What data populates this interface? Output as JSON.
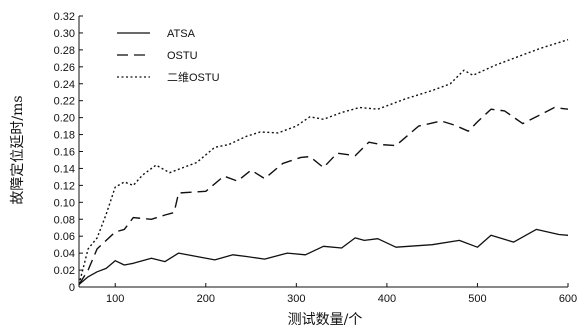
{
  "chart_data": {
    "type": "line",
    "title": "",
    "xlabel": "测试数量/个",
    "ylabel": "故障定位延时/ms",
    "xlim": [
      60,
      600
    ],
    "ylim": [
      0,
      0.32
    ],
    "xticks": [
      100,
      200,
      300,
      400,
      500,
      600
    ],
    "yticks": [
      0,
      0.02,
      0.04,
      0.06,
      0.08,
      0.1,
      0.12,
      0.14,
      0.16,
      0.18,
      0.2,
      0.22,
      0.24,
      0.26,
      0.28,
      0.3,
      0.32
    ],
    "ytick_labels": [
      "0",
      "0.02",
      "0.04",
      "0.06",
      "0.08",
      "0.10",
      "0.12",
      "0.14",
      "0.16",
      "0.18",
      "0.20",
      "0.22",
      "0.24",
      "0.26",
      "0.28",
      "0.30",
      "0.32"
    ],
    "grid": false,
    "legend_position": "top-left",
    "series": [
      {
        "name": "ATSA",
        "style": "solid",
        "points": [
          [
            60,
            0.003
          ],
          [
            70,
            0.012
          ],
          [
            80,
            0.018
          ],
          [
            90,
            0.022
          ],
          [
            100,
            0.031
          ],
          [
            110,
            0.026
          ],
          [
            120,
            0.028
          ],
          [
            140,
            0.034
          ],
          [
            155,
            0.03
          ],
          [
            170,
            0.04
          ],
          [
            190,
            0.036
          ],
          [
            210,
            0.032
          ],
          [
            230,
            0.038
          ],
          [
            245,
            0.036
          ],
          [
            265,
            0.033
          ],
          [
            290,
            0.04
          ],
          [
            310,
            0.038
          ],
          [
            330,
            0.048
          ],
          [
            350,
            0.046
          ],
          [
            365,
            0.058
          ],
          [
            375,
            0.055
          ],
          [
            390,
            0.057
          ],
          [
            410,
            0.047
          ],
          [
            450,
            0.05
          ],
          [
            480,
            0.055
          ],
          [
            500,
            0.047
          ],
          [
            515,
            0.061
          ],
          [
            540,
            0.053
          ],
          [
            565,
            0.068
          ],
          [
            590,
            0.062
          ],
          [
            600,
            0.061
          ]
        ]
      },
      {
        "name": "OSTU",
        "style": "dashed",
        "points": [
          [
            60,
            0.003
          ],
          [
            70,
            0.02
          ],
          [
            80,
            0.045
          ],
          [
            90,
            0.055
          ],
          [
            100,
            0.065
          ],
          [
            110,
            0.068
          ],
          [
            120,
            0.082
          ],
          [
            140,
            0.08
          ],
          [
            155,
            0.085
          ],
          [
            165,
            0.088
          ],
          [
            170,
            0.111
          ],
          [
            185,
            0.112
          ],
          [
            200,
            0.113
          ],
          [
            220,
            0.131
          ],
          [
            235,
            0.125
          ],
          [
            250,
            0.138
          ],
          [
            265,
            0.128
          ],
          [
            285,
            0.146
          ],
          [
            305,
            0.153
          ],
          [
            315,
            0.154
          ],
          [
            330,
            0.141
          ],
          [
            345,
            0.158
          ],
          [
            365,
            0.155
          ],
          [
            380,
            0.171
          ],
          [
            395,
            0.168
          ],
          [
            410,
            0.167
          ],
          [
            435,
            0.19
          ],
          [
            460,
            0.196
          ],
          [
            475,
            0.191
          ],
          [
            490,
            0.184
          ],
          [
            500,
            0.195
          ],
          [
            515,
            0.21
          ],
          [
            530,
            0.208
          ],
          [
            550,
            0.193
          ],
          [
            565,
            0.201
          ],
          [
            585,
            0.212
          ],
          [
            600,
            0.21
          ]
        ]
      },
      {
        "name": "二维OSTU",
        "style": "dotted",
        "points": [
          [
            60,
            0.003
          ],
          [
            70,
            0.045
          ],
          [
            80,
            0.058
          ],
          [
            90,
            0.086
          ],
          [
            100,
            0.118
          ],
          [
            110,
            0.124
          ],
          [
            120,
            0.12
          ],
          [
            130,
            0.132
          ],
          [
            145,
            0.144
          ],
          [
            160,
            0.135
          ],
          [
            175,
            0.141
          ],
          [
            190,
            0.147
          ],
          [
            210,
            0.165
          ],
          [
            225,
            0.168
          ],
          [
            245,
            0.178
          ],
          [
            260,
            0.183
          ],
          [
            280,
            0.182
          ],
          [
            300,
            0.19
          ],
          [
            315,
            0.201
          ],
          [
            330,
            0.198
          ],
          [
            350,
            0.206
          ],
          [
            370,
            0.212
          ],
          [
            390,
            0.21
          ],
          [
            420,
            0.222
          ],
          [
            450,
            0.232
          ],
          [
            470,
            0.24
          ],
          [
            485,
            0.256
          ],
          [
            495,
            0.25
          ],
          [
            520,
            0.262
          ],
          [
            545,
            0.272
          ],
          [
            570,
            0.282
          ],
          [
            600,
            0.292
          ]
        ]
      }
    ]
  }
}
